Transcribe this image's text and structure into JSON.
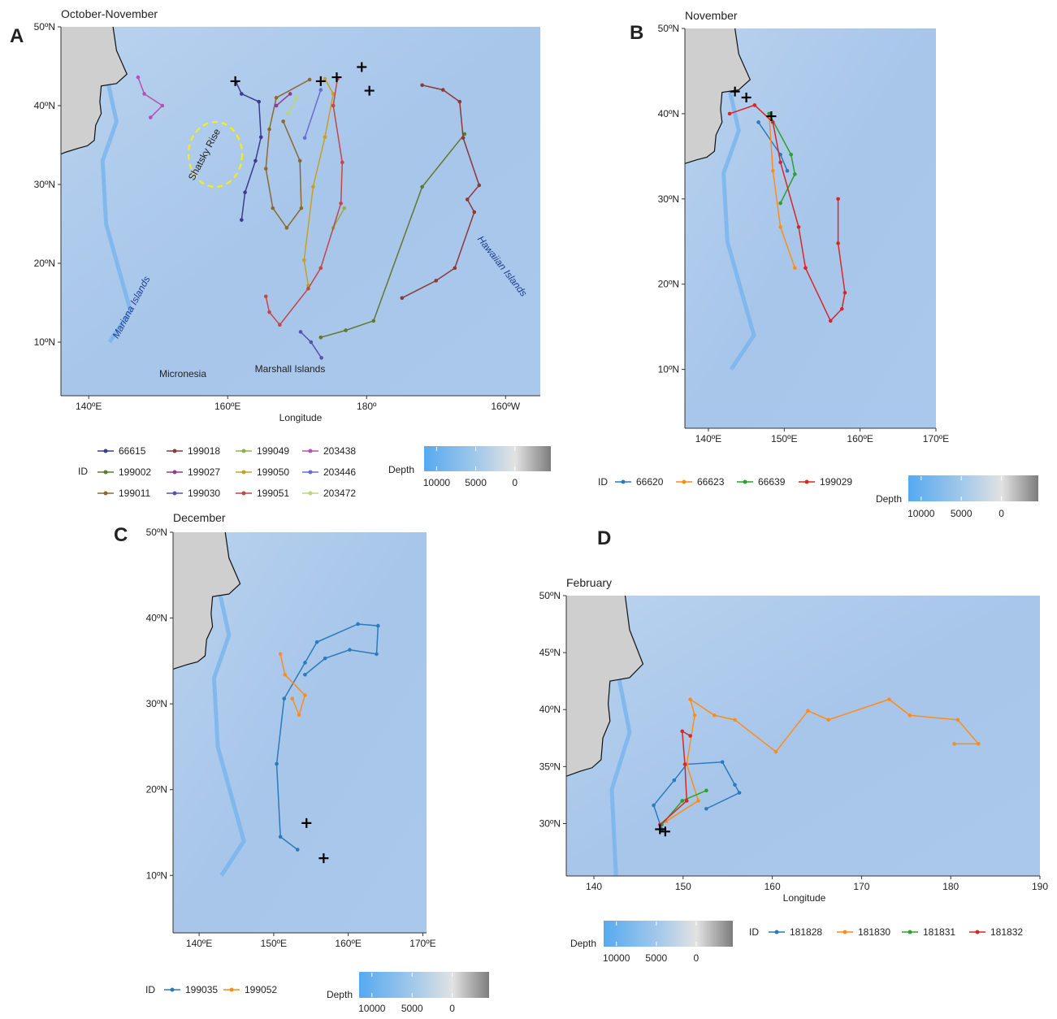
{
  "chart_data": [
    {
      "type": "map",
      "label": "A",
      "title": "October-November",
      "x_label": "Longitude",
      "xlim": [
        136,
        205
      ],
      "ylim": [
        3.2,
        50
      ],
      "xticks": [
        {
          "value": 140,
          "label": "140ºE"
        },
        {
          "value": 160,
          "label": "160ºE"
        },
        {
          "value": 180,
          "label": "180º"
        },
        {
          "value": 200,
          "label": "160ºW"
        }
      ],
      "yticks": [
        {
          "value": 10,
          "label": "10ºN"
        },
        {
          "value": 20,
          "label": "20ºN"
        },
        {
          "value": 30,
          "label": "30ºN"
        },
        {
          "value": 40,
          "label": "40ºN"
        },
        {
          "value": 50,
          "label": "50ºN"
        }
      ],
      "legend_title": "ID",
      "annotations": [
        "Shatsky Rise",
        "Mariana Islands",
        "Hawaiian Islands",
        "Micronesia",
        "Marshall Islands"
      ],
      "series": [
        {
          "name": "66615",
          "color": "#3a3d8f",
          "x": [
            161.2,
            162,
            164.5,
            164.8,
            164,
            162.5,
            162
          ],
          "values": [
            43,
            41.5,
            40.5,
            36,
            33,
            29,
            25.5
          ]
        },
        {
          "name": "199002",
          "color": "#5f7a2a",
          "x": [
            173.4,
            177,
            181,
            188,
            194.1
          ],
          "values": [
            10.6,
            11.5,
            12.7,
            29.7,
            36.4
          ]
        },
        {
          "name": "199011",
          "color": "#8a6a2f",
          "x": [
            171.8,
            167,
            166,
            165.5,
            166.5,
            168.5,
            170.6,
            170.4,
            168
          ],
          "values": [
            43.3,
            41,
            37,
            32,
            27,
            24.5,
            27,
            33,
            38
          ]
        },
        {
          "name": "199018",
          "color": "#8b3a3a",
          "x": [
            188,
            191,
            193.4,
            193.9,
            196.2,
            194.5,
            195.5,
            192.7,
            190,
            185.1
          ],
          "values": [
            42.6,
            42,
            40.5,
            35.9,
            29.9,
            28.1,
            26.5,
            19.4,
            17.8,
            15.6
          ]
        },
        {
          "name": "199027",
          "color": "#8e3e8e",
          "x": [
            167,
            169
          ],
          "values": [
            40,
            41.5
          ]
        },
        {
          "name": "199030",
          "color": "#5555b0",
          "x": [
            170.5,
            172,
            173.5
          ],
          "values": [
            11.3,
            10,
            8
          ]
        },
        {
          "name": "199049",
          "color": "#8fb04f",
          "x": [
            175.2,
            176.8
          ],
          "values": [
            24.5,
            27
          ]
        },
        {
          "name": "199050",
          "color": "#c4a02a",
          "x": [
            174,
            175.2,
            174,
            172.3,
            171,
            171.6
          ],
          "values": [
            43.4,
            41.5,
            36,
            29.7,
            20.4,
            17.2
          ]
        },
        {
          "name": "199051",
          "color": "#c0474a",
          "x": [
            175.8,
            175.2,
            176.5,
            176.3,
            173.4,
            171.6,
            167.5,
            166,
            165.5
          ],
          "values": [
            43.4,
            40,
            32.8,
            27.6,
            19.4,
            16.8,
            12.2,
            13.8,
            15.8
          ]
        },
        {
          "name": "203438",
          "color": "#b452b4",
          "x": [
            147.1,
            148,
            150.6,
            148.9
          ],
          "values": [
            43.6,
            41.5,
            40,
            38.5
          ]
        },
        {
          "name": "203446",
          "color": "#6b6bd6",
          "x": [
            171.1,
            173.4
          ],
          "values": [
            35.9,
            42
          ]
        },
        {
          "name": "203472",
          "color": "#b8d67a",
          "x": [
            168.7,
            169.9
          ],
          "values": [
            39,
            41
          ]
        }
      ],
      "markers": {
        "x": [
          161.1,
          173.4,
          175.7,
          179.3,
          180.4
        ],
        "y": [
          43.1,
          43.1,
          43.6,
          44.9,
          41.9
        ]
      },
      "depth_scale": {
        "label": "Depth",
        "lim": [
          11600,
          -4600
        ],
        "ticks": [
          10000,
          5000,
          0
        ]
      }
    },
    {
      "type": "map",
      "label": "B",
      "title": "November",
      "xlim": [
        136.9,
        170
      ],
      "ylim": [
        3.1,
        50
      ],
      "xticks": [
        {
          "value": 140,
          "label": "140ºE"
        },
        {
          "value": 150,
          "label": "150ºE"
        },
        {
          "value": 160,
          "label": "160ºE"
        },
        {
          "value": 170,
          "label": "170ºE"
        }
      ],
      "yticks": [
        {
          "value": 10,
          "label": "10ºN"
        },
        {
          "value": 20,
          "label": "20ºN"
        },
        {
          "value": 30,
          "label": "30ºN"
        },
        {
          "value": 40,
          "label": "40ºN"
        },
        {
          "value": 50,
          "label": "50ºN"
        }
      ],
      "legend_title": "ID",
      "series": [
        {
          "name": "66620",
          "color": "#2b7bba",
          "x": [
            146.6,
            149.5,
            150.4
          ],
          "values": [
            39,
            35.2,
            33.3
          ]
        },
        {
          "name": "66623",
          "color": "#ff8c1a",
          "x": [
            148,
            148.5,
            149.5,
            151.4
          ],
          "values": [
            40,
            33.3,
            26.7,
            21.9
          ]
        },
        {
          "name": "66639",
          "color": "#2ca02c",
          "x": [
            148,
            150.9,
            151.4,
            149.5
          ],
          "values": [
            40,
            35.2,
            32.9,
            29.5
          ]
        },
        {
          "name": "199029",
          "color": "#d62728",
          "x": [
            142.8,
            146.1,
            148.5,
            149.5,
            151.9,
            152.8,
            156.1,
            157.6,
            158,
            157.1,
            157.1
          ],
          "values": [
            40,
            41,
            39,
            34.3,
            26.7,
            21.9,
            15.7,
            17.1,
            19,
            24.8,
            30
          ]
        }
      ],
      "markers": {
        "x": [
          143.5,
          145,
          148.3
        ],
        "y": [
          42.6,
          41.9,
          39.7
        ]
      },
      "depth_scale": {
        "label": "Depth",
        "lim": [
          11600,
          -4600
        ],
        "ticks": [
          10000,
          5000,
          0
        ]
      }
    },
    {
      "type": "map",
      "label": "C",
      "title": "December",
      "xlim": [
        136.5,
        170.5
      ],
      "ylim": [
        3.3,
        50
      ],
      "xticks": [
        {
          "value": 140,
          "label": "140ºE"
        },
        {
          "value": 150,
          "label": "150ºE"
        },
        {
          "value": 160,
          "label": "160ºE"
        },
        {
          "value": 170,
          "label": "170ºE"
        }
      ],
      "yticks": [
        {
          "value": 10,
          "label": "10ºN"
        },
        {
          "value": 20,
          "label": "20ºN"
        },
        {
          "value": 30,
          "label": "30ºN"
        },
        {
          "value": 40,
          "label": "40ºN"
        },
        {
          "value": 50,
          "label": "50ºN"
        }
      ],
      "legend_title": "ID",
      "series": [
        {
          "name": "199035",
          "color": "#2b7bba",
          "x": [
            153.2,
            150.9,
            150.4,
            151.4,
            154.2,
            155.8,
            161.3,
            164,
            163.8,
            160.2,
            156.9,
            154.2
          ],
          "values": [
            13,
            14.5,
            23,
            30.6,
            34.8,
            37.2,
            39.3,
            39.1,
            35.8,
            36.3,
            35.3,
            33.4
          ]
        },
        {
          "name": "199052",
          "color": "#ff8c1a",
          "x": [
            150.9,
            151.5,
            154.2,
            153.4,
            152.5
          ],
          "values": [
            35.8,
            33.4,
            31,
            28.7,
            30.6
          ]
        }
      ],
      "markers": {
        "x": [
          154.4,
          156.7
        ],
        "y": [
          16.1,
          12
        ]
      },
      "depth_scale": {
        "label": "Depth",
        "lim": [
          11600,
          -4600
        ],
        "ticks": [
          10000,
          5000,
          0
        ]
      }
    },
    {
      "type": "map",
      "label": "D",
      "title": "February",
      "x_label": "Longitude",
      "xlim": [
        136.9,
        190
      ],
      "ylim": [
        25.4,
        50
      ],
      "xticks": [
        140,
        150,
        160,
        170,
        180,
        190
      ],
      "yticks": [
        {
          "value": 30,
          "label": "30ºN"
        },
        {
          "value": 35,
          "label": "35ºN"
        },
        {
          "value": 40,
          "label": "40ºN"
        },
        {
          "value": 45,
          "label": "45ºN"
        },
        {
          "value": 50,
          "label": "50ºN"
        }
      ],
      "legend_title": "ID",
      "series": [
        {
          "name": "181828",
          "color": "#2b7bba",
          "x": [
            147.6,
            146.7,
            149,
            150.4,
            154.4,
            155.8,
            156.3,
            152.6
          ],
          "values": [
            29.5,
            31.6,
            33.8,
            35.2,
            35.4,
            33.4,
            32.7,
            31.3
          ]
        },
        {
          "name": "181830",
          "color": "#ff8c1a",
          "x": [
            148.1,
            151.7,
            150.4,
            151.3,
            150.8,
            153.5,
            155.8,
            160.4,
            164,
            166.3,
            173.1,
            175.4,
            180.8,
            183.1,
            180.4
          ],
          "values": [
            30.2,
            32,
            35.2,
            39.5,
            40.9,
            39.5,
            39.1,
            36.3,
            39.9,
            39.1,
            40.9,
            39.5,
            39.1,
            37,
            37
          ]
        },
        {
          "name": "181831",
          "color": "#2ca02c",
          "x": [
            147.6,
            149.9,
            152.6
          ],
          "values": [
            29.9,
            32,
            32.9
          ]
        },
        {
          "name": "181832",
          "color": "#d62728",
          "x": [
            147.4,
            150.4,
            150.2,
            149.9,
            150.8
          ],
          "values": [
            29.9,
            32,
            35.2,
            38.1,
            37.7
          ]
        }
      ],
      "markers": {
        "x": [
          147.4,
          148
        ],
        "y": [
          29.5,
          29.3
        ]
      },
      "depth_scale": {
        "label": "Depth",
        "lim": [
          11600,
          -4600
        ],
        "ticks": [
          10000,
          5000,
          0
        ]
      }
    }
  ]
}
